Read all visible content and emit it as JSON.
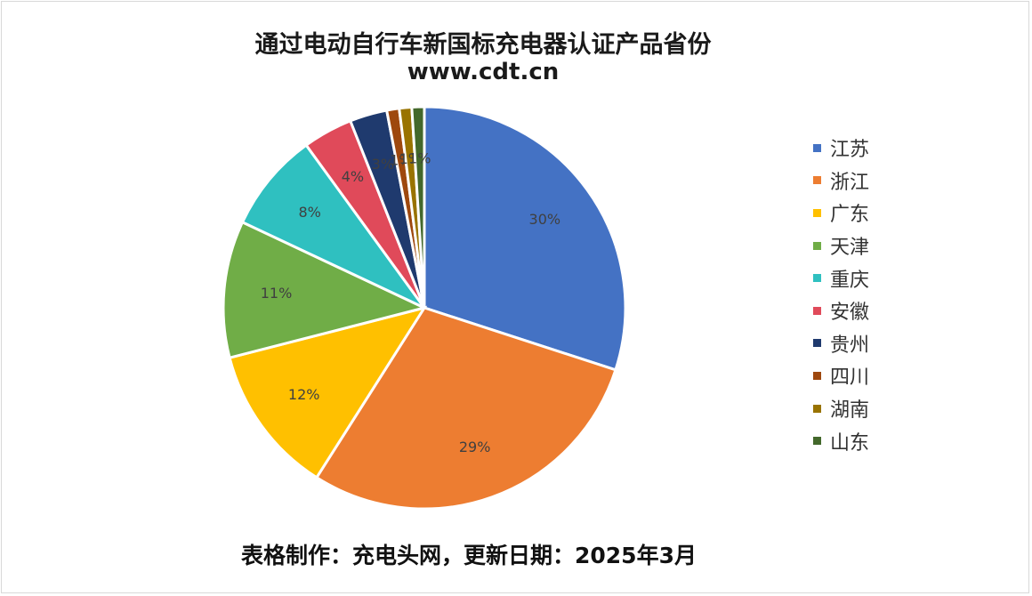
{
  "header": {
    "title": "通过电动自行车新国标充电器认证产品省份",
    "subtitle": "www.cdt.cn"
  },
  "footer": {
    "text": "表格制作：充电头网，更新日期：2025年3月"
  },
  "chart_data": {
    "type": "pie",
    "title": "通过电动自行车新国标充电器认证产品省份",
    "subtitle": "www.cdt.cn",
    "legend_position": "right",
    "categories": [
      "江苏",
      "浙江",
      "广东",
      "天津",
      "重庆",
      "安徽",
      "贵州",
      "四川",
      "湖南",
      "山东"
    ],
    "values": [
      30,
      29,
      12,
      11,
      8,
      4,
      3,
      1,
      1,
      1
    ],
    "data_labels": [
      "30%",
      "29%",
      "12%",
      "11%",
      "8%",
      "4%",
      "3%",
      "1%",
      "1%",
      "1%"
    ],
    "colors": [
      "#4472c4",
      "#ed7d31",
      "#ffc000",
      "#70ad47",
      "#2fc0c0",
      "#e04a5a",
      "#1f3a6e",
      "#9e480e",
      "#997300",
      "#43682b"
    ]
  }
}
